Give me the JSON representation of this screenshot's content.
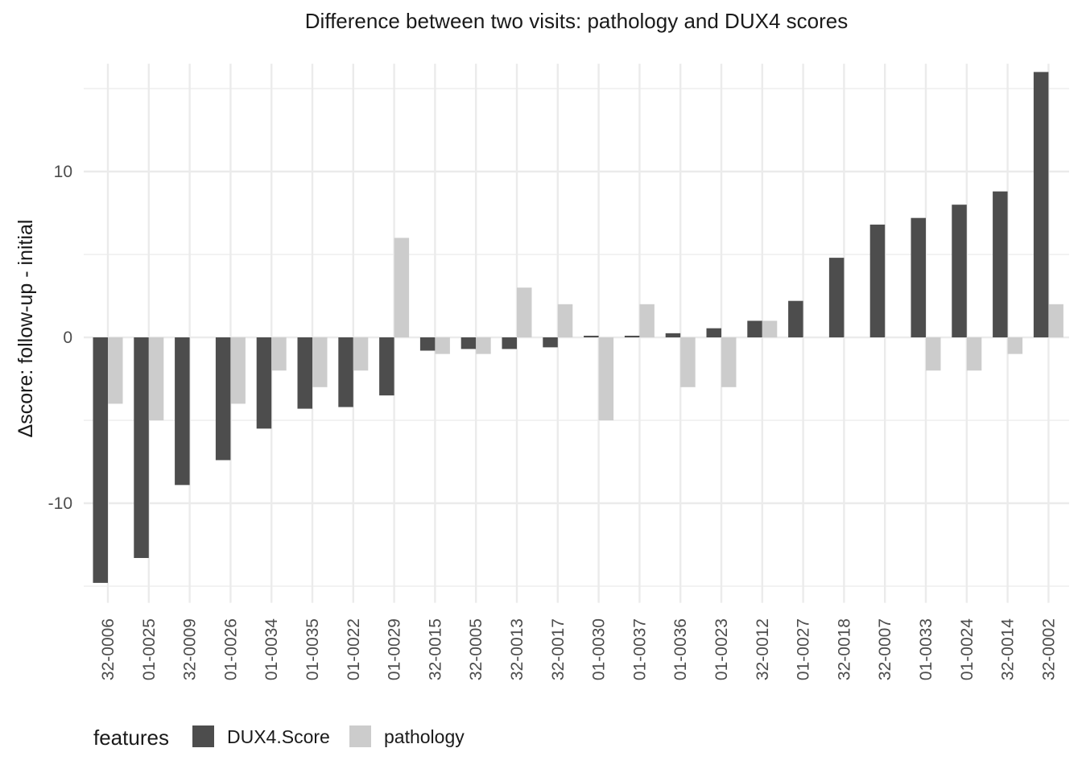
{
  "chart_data": {
    "type": "bar",
    "title": "Difference between two visits: pathology and DUX4 scores",
    "xlabel": "",
    "ylabel": "Δscore: follow-up - initial",
    "ylim": [
      -16,
      16.5
    ],
    "yticks": [
      -10,
      0,
      10
    ],
    "grid": true,
    "legend": {
      "title": "features",
      "position": "bottom-left"
    },
    "categories": [
      "32-0006",
      "01-0025",
      "32-0009",
      "01-0026",
      "01-0034",
      "01-0035",
      "01-0022",
      "01-0029",
      "32-0015",
      "32-0005",
      "32-0013",
      "32-0017",
      "01-0030",
      "01-0037",
      "01-0036",
      "01-0023",
      "32-0012",
      "01-0027",
      "32-0018",
      "32-0007",
      "01-0033",
      "01-0024",
      "32-0014",
      "32-0002"
    ],
    "series": [
      {
        "name": "DUX4.Score",
        "color": "#4d4d4d",
        "values": [
          -14.8,
          -13.3,
          -8.9,
          -7.4,
          -5.5,
          -4.3,
          -4.2,
          -3.5,
          -0.8,
          -0.7,
          -0.7,
          -0.6,
          0.1,
          0.1,
          0.25,
          0.55,
          1.0,
          2.2,
          4.8,
          6.8,
          7.2,
          8.0,
          8.8,
          16.0
        ]
      },
      {
        "name": "pathology",
        "color": "#cccccc",
        "values": [
          -4,
          -5,
          0,
          -4,
          -2,
          -3,
          -2,
          6,
          -1,
          -1,
          3,
          2,
          -5,
          2,
          -3,
          -3,
          1,
          0,
          0,
          0,
          -2,
          -2,
          -1,
          2
        ]
      }
    ]
  }
}
